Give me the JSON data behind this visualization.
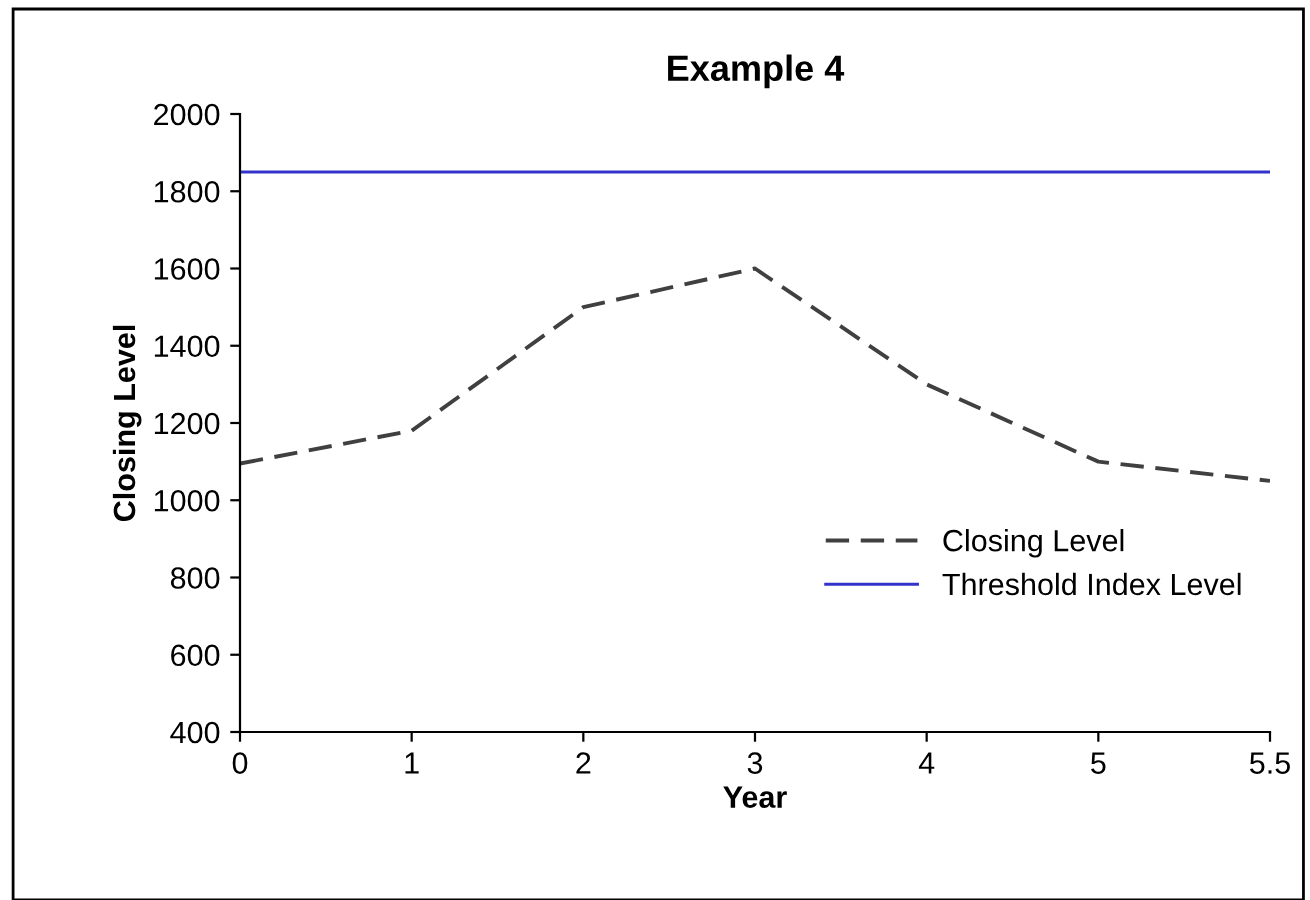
{
  "chart_data": {
    "type": "line",
    "title": "Example 4",
    "xlabel": "Year",
    "ylabel": "Closing Level",
    "categories": [
      "0",
      "1",
      "2",
      "3",
      "4",
      "5",
      "5.5"
    ],
    "series": [
      {
        "name": "Closing Level",
        "color": "#404040",
        "line_style": "dashed",
        "values": [
          1095,
          1180,
          1500,
          1600,
          1300,
          1100,
          1050
        ]
      },
      {
        "name": "Threshold Index Level",
        "color": "#3333cc",
        "line_style": "solid",
        "values": [
          1850,
          1850,
          1850,
          1850,
          1850,
          1850,
          1850
        ]
      }
    ],
    "ylim": [
      400,
      2000
    ],
    "yticks": [
      400,
      600,
      800,
      1000,
      1200,
      1400,
      1600,
      1800,
      2000
    ],
    "grid": false,
    "legend": "right",
    "marker": "none"
  }
}
